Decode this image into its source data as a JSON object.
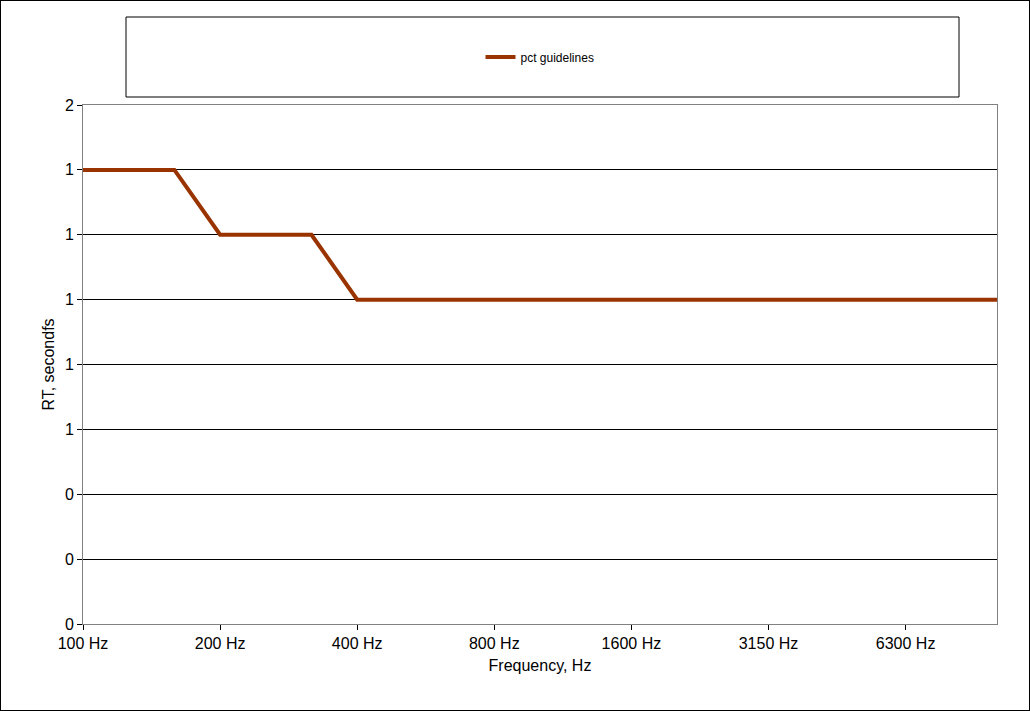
{
  "chart_data": {
    "type": "line",
    "x_label": "Frequency, Hz",
    "y_label": "RT, secondfs",
    "categories": [
      "100 Hz",
      null,
      null,
      "200 Hz",
      null,
      null,
      "400 Hz",
      null,
      null,
      "800 Hz",
      null,
      null,
      "1600 Hz",
      null,
      null,
      "3150 Hz",
      null,
      null,
      "6300 Hz",
      null,
      null
    ],
    "series": [
      {
        "name": "pct guidelines",
        "color": "#993300",
        "values": [
          1.4,
          1.4,
          1.4,
          1.2,
          1.2,
          1.2,
          1.0,
          1.0,
          1.0,
          1.0,
          1.0,
          1.0,
          1.0,
          1.0,
          1.0,
          1.0,
          1.0,
          1.0,
          1.0,
          1.0,
          1.0
        ]
      }
    ],
    "ylim": [
      0,
      1.6
    ],
    "yticks": [
      {
        "value": 0,
        "label": "0"
      },
      {
        "value": 0.2,
        "label": "0"
      },
      {
        "value": 0.4,
        "label": "0"
      },
      {
        "value": 0.6,
        "label": "1"
      },
      {
        "value": 0.8,
        "label": "1"
      },
      {
        "value": 1.0,
        "label": "1"
      },
      {
        "value": 1.2,
        "label": "1"
      },
      {
        "value": 1.4,
        "label": "1"
      },
      {
        "value": 1.6,
        "label": "2"
      }
    ],
    "grid": true,
    "legend": "top"
  }
}
